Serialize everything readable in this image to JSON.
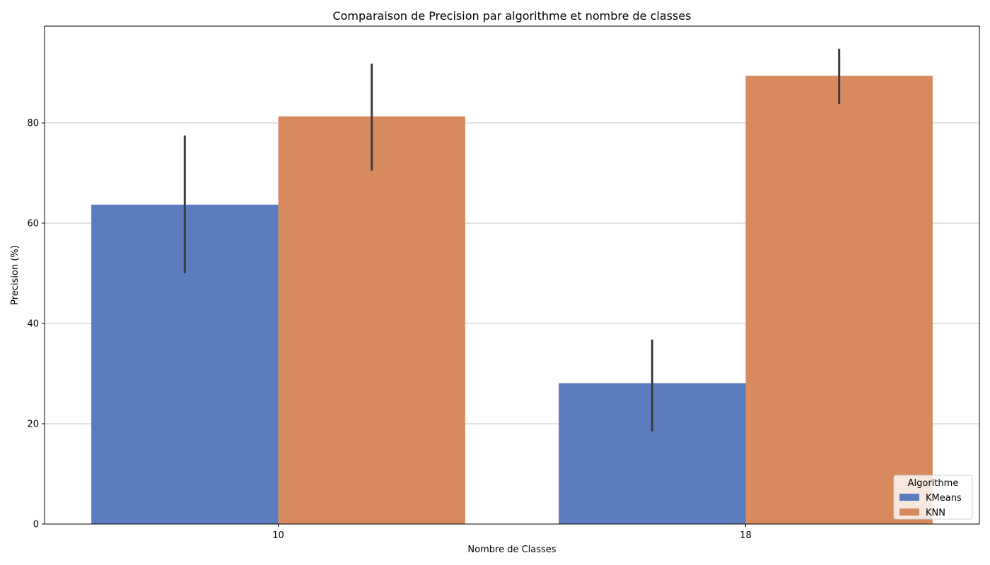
{
  "chart_data": {
    "type": "bar",
    "title": "Comparaison de Precision par algorithme et nombre de classes",
    "xlabel": "Nombre de Classes",
    "ylabel": "Precision (%)",
    "categories": [
      "10",
      "18"
    ],
    "series": [
      {
        "name": "KMeans",
        "color": "#5b7dbf",
        "values": [
          63.7,
          28.1
        ],
        "error_low": [
          50.0,
          18.5
        ],
        "error_high": [
          77.5,
          36.8
        ]
      },
      {
        "name": "KNN",
        "color": "#d88a5e",
        "values": [
          81.3,
          89.4
        ],
        "error_low": [
          70.5,
          83.8
        ],
        "error_high": [
          91.8,
          94.8
        ]
      }
    ],
    "ylim": [
      0,
      99.3
    ],
    "yticks": [
      0,
      20,
      40,
      60,
      80
    ],
    "grid": "y",
    "legend": {
      "title": "Algorithme",
      "position": "lower-right"
    }
  }
}
